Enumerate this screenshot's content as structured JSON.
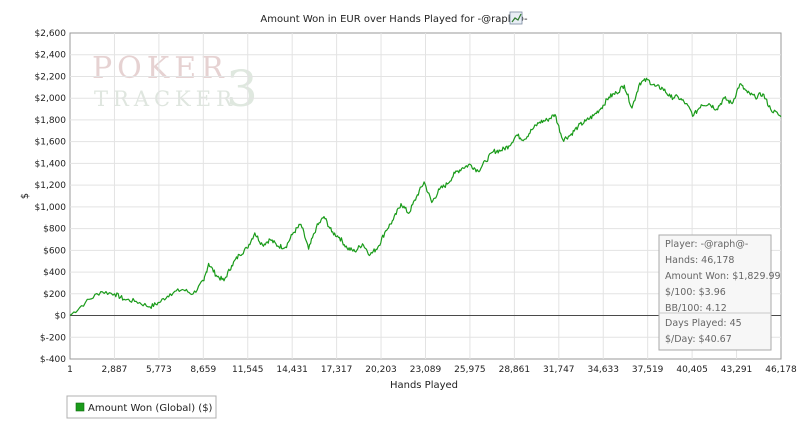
{
  "chart_data": {
    "type": "line",
    "title": "Amount Won in EUR over Hands Played for -@raph@-",
    "title_icon": "chart-icon",
    "xlabel": "Hands Played",
    "ylabel": "$",
    "xlim": [
      1,
      46178
    ],
    "ylim": [
      -400,
      2600
    ],
    "x_ticks": [
      1,
      2887,
      5773,
      8659,
      11545,
      14431,
      17317,
      20203,
      23089,
      25975,
      28861,
      31747,
      34633,
      37519,
      40405,
      43291,
      46178
    ],
    "x_tick_labels": [
      "1",
      "2,887",
      "5,773",
      "8,659",
      "11,545",
      "14,431",
      "17,317",
      "20,203",
      "23,089",
      "25,975",
      "28,861",
      "31,747",
      "34,633",
      "37,519",
      "40,405",
      "43,291",
      "46,178"
    ],
    "y_ticks": [
      2600,
      2400,
      2200,
      2000,
      1800,
      1600,
      1400,
      1200,
      1000,
      800,
      600,
      400,
      200,
      0,
      -200,
      -400
    ],
    "y_tick_labels": [
      "$2,600",
      "$2,400",
      "$2,200",
      "$2,000",
      "$1,800",
      "$1,600",
      "$1,400",
      "$1,200",
      "$1,000",
      "$800",
      "$600",
      "$400",
      "$200",
      "$0",
      "$-200",
      "$-400"
    ],
    "grid": true,
    "legend_position": "bottom-left",
    "series": [
      {
        "name": "Amount Won (Global) ($)",
        "color": "#1a9b1a",
        "x": [
          1,
          1000,
          2000,
          2900,
          3500,
          4300,
          5200,
          5800,
          6500,
          7300,
          8000,
          8700,
          9000,
          9500,
          10000,
          10500,
          11000,
          11500,
          12000,
          12500,
          13000,
          13500,
          14000,
          14500,
          15000,
          15500,
          16000,
          16500,
          17000,
          17500,
          18000,
          18500,
          19000,
          19500,
          20000,
          20500,
          21000,
          21500,
          22000,
          22500,
          23000,
          23500,
          24000,
          24500,
          25000,
          25500,
          26000,
          26500,
          27000,
          27500,
          28000,
          28500,
          29000,
          29500,
          30000,
          30500,
          31000,
          31500,
          32000,
          32500,
          33000,
          33500,
          34000,
          34500,
          35000,
          35500,
          36000,
          36500,
          37000,
          37500,
          38000,
          38500,
          39000,
          39500,
          40000,
          40500,
          41000,
          41500,
          42000,
          42500,
          43000,
          43500,
          44000,
          44500,
          45000,
          45500,
          46178
        ],
        "y": [
          0,
          120,
          220,
          200,
          150,
          130,
          80,
          120,
          200,
          240,
          200,
          320,
          480,
          370,
          320,
          460,
          560,
          620,
          760,
          650,
          700,
          640,
          630,
          760,
          840,
          610,
          810,
          910,
          770,
          720,
          620,
          590,
          660,
          560,
          630,
          780,
          880,
          1030,
          940,
          1090,
          1230,
          1040,
          1160,
          1210,
          1310,
          1360,
          1390,
          1330,
          1420,
          1510,
          1520,
          1560,
          1660,
          1620,
          1710,
          1780,
          1800,
          1850,
          1620,
          1660,
          1740,
          1790,
          1840,
          1910,
          2010,
          2050,
          2120,
          1910,
          2140,
          2170,
          2110,
          2090,
          2010,
          2010,
          1950,
          1840,
          1940,
          1950,
          1900,
          2000,
          1950,
          2130,
          2050,
          2010,
          2040,
          1900,
          1830
        ]
      }
    ]
  },
  "stats_box": {
    "player": "Player: -@raph@-",
    "hands": "Hands: 46,178",
    "amount_won": "Amount Won: $1,829.99",
    "per100": "$/100: $3.96",
    "bb100": "BB/100: 4.12",
    "days_played": "Days Played: 45",
    "per_day": "$/Day: $40.67"
  },
  "watermark": {
    "line1": "POKER",
    "line2": "TRACKER",
    "mark": "3"
  }
}
